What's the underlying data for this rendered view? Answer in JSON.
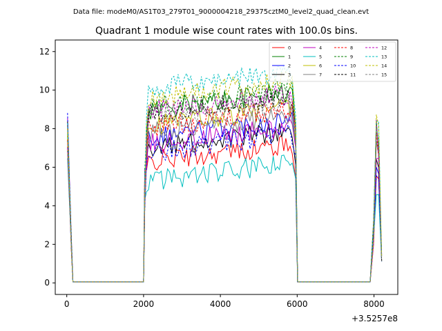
{
  "chart_data": {
    "type": "line",
    "suptitle": "Data file: modeM0/AS1T03_279T01_9000004218_29375cztM0_level2_quad_clean.evt",
    "title": "Quadrant 1 module wise count rates with 100.0s bins.",
    "xlabel": "",
    "ylabel": "",
    "x_offset_label": "+3.5257e8",
    "xlim": [
      -300,
      8620
    ],
    "ylim": [
      -0.6,
      12.6
    ],
    "x_ticks": [
      0,
      2000,
      4000,
      6000,
      8000
    ],
    "x_tick_labels": [
      "0",
      "2000",
      "4000",
      "6000",
      "8000"
    ],
    "y_ticks": [
      0,
      2,
      4,
      6,
      8,
      10,
      12
    ],
    "y_tick_labels": [
      "0",
      "2",
      "4",
      "6",
      "8",
      "10",
      "12"
    ],
    "grid": false,
    "legend_position": "top-right",
    "segments": [
      {
        "x_start": 0,
        "x_end": 2000,
        "pattern": "burst_start"
      },
      {
        "x_start": 2000,
        "x_end": 6000,
        "pattern": "plateau"
      },
      {
        "x_start": 7900,
        "x_end": 8200,
        "pattern": "burst_end"
      }
    ],
    "series": [
      {
        "name": "0",
        "color": "#ff0000",
        "dash": false,
        "level": 6.7
      },
      {
        "name": "1",
        "color": "#008000",
        "dash": false,
        "level": 9.4
      },
      {
        "name": "2",
        "color": "#0000ff",
        "dash": false,
        "level": 8.0
      },
      {
        "name": "3",
        "color": "#000000",
        "dash": false,
        "level": 7.4
      },
      {
        "name": "4",
        "color": "#bf00bf",
        "dash": false,
        "level": 7.6
      },
      {
        "name": "5",
        "color": "#00bfbf",
        "dash": false,
        "level": 5.7
      },
      {
        "name": "6",
        "color": "#bfbf00",
        "dash": false,
        "level": 8.6
      },
      {
        "name": "7",
        "color": "#808080",
        "dash": false,
        "level": 8.2
      },
      {
        "name": "8",
        "color": "#ff0000",
        "dash": true,
        "level": 8.5
      },
      {
        "name": "9",
        "color": "#008000",
        "dash": true,
        "level": 9.6
      },
      {
        "name": "10",
        "color": "#0000ff",
        "dash": true,
        "level": 7.2
      },
      {
        "name": "11",
        "color": "#000000",
        "dash": true,
        "level": 9.2
      },
      {
        "name": "12",
        "color": "#bf00bf",
        "dash": true,
        "level": 9.3
      },
      {
        "name": "13",
        "color": "#00bfbf",
        "dash": true,
        "level": 10.5
      },
      {
        "name": "14",
        "color": "#bfbf00",
        "dash": true,
        "level": 10.0
      },
      {
        "name": "15",
        "color": "#808080",
        "dash": true,
        "level": 9.0
      }
    ]
  }
}
